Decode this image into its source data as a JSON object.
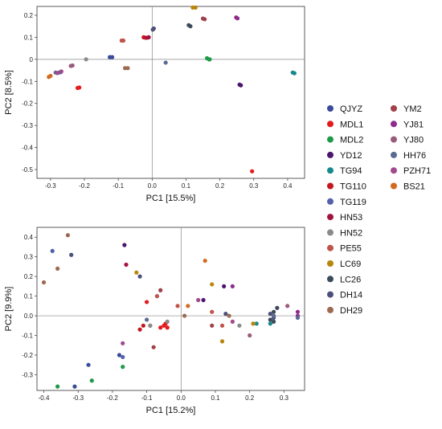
{
  "legend": {
    "groups": [
      {
        "name": "QJYZ",
        "color": "#3a4b9b"
      },
      {
        "name": "MDL1",
        "color": "#e41a1c"
      },
      {
        "name": "MDL2",
        "color": "#1f9a4a"
      },
      {
        "name": "YD12",
        "color": "#4a1670"
      },
      {
        "name": "TG94",
        "color": "#168a8a"
      },
      {
        "name": "TG110",
        "color": "#c4161c"
      },
      {
        "name": "TG119",
        "color": "#5460a8"
      },
      {
        "name": "HN53",
        "color": "#a3123e"
      },
      {
        "name": "HN52",
        "color": "#8a8a8a"
      },
      {
        "name": "PE55",
        "color": "#c0534a"
      },
      {
        "name": "LC69",
        "color": "#b8860b"
      },
      {
        "name": "LC26",
        "color": "#3b4b5b"
      },
      {
        "name": "DH14",
        "color": "#4b4f7a"
      },
      {
        "name": "DH29",
        "color": "#9c6a52"
      },
      {
        "name": "YM2",
        "color": "#a0404a"
      },
      {
        "name": "YJ81",
        "color": "#8e2c8e"
      },
      {
        "name": "YJ80",
        "color": "#9a5a7a"
      },
      {
        "name": "HH76",
        "color": "#5a6a90"
      },
      {
        "name": "PZH71",
        "color": "#a04a8c"
      },
      {
        "name": "BS21",
        "color": "#d2691e"
      }
    ]
  },
  "chart_data": [
    {
      "type": "scatter",
      "xlabel": "PC1 [15.5%]",
      "ylabel": "PC2 [8.5%]",
      "xlim": [
        -0.34,
        0.45
      ],
      "ylim": [
        -0.54,
        0.24
      ],
      "xticks": [
        -0.3,
        -0.2,
        -0.1,
        0.0,
        0.1,
        0.2,
        0.3,
        0.4
      ],
      "xtick_labels": [
        "-0.3",
        "-0.2",
        "-0.1",
        "0.0",
        "0.1",
        "0.2",
        "0.3",
        "0.4"
      ],
      "yticks": [
        0.2,
        0.1,
        0.0,
        -0.1,
        -0.2,
        -0.3,
        -0.4,
        -0.5
      ],
      "ytick_labels": [
        "0.2",
        "0.1",
        "0",
        "-0.1",
        "-0.2",
        "-0.3",
        "-0.4",
        "-0.5"
      ],
      "zero_lines": true,
      "grid": false,
      "series": [
        {
          "group": "QJYZ",
          "points": [
            [
              -0.125,
              0.01
            ],
            [
              -0.118,
              0.01
            ]
          ]
        },
        {
          "group": "MDL1",
          "points": [
            [
              -0.22,
              -0.13
            ],
            [
              -0.215,
              -0.128
            ],
            [
              0.295,
              -0.508
            ]
          ]
        },
        {
          "group": "MDL2",
          "points": [
            [
              0.162,
              0.005
            ],
            [
              0.168,
              0.0
            ],
            [
              0.17,
              0.0
            ]
          ]
        },
        {
          "group": "YD12",
          "points": [
            [
              0.258,
              -0.115
            ],
            [
              0.262,
              -0.118
            ]
          ]
        },
        {
          "group": "TG94",
          "points": [
            [
              0.415,
              -0.06
            ],
            [
              0.42,
              -0.063
            ]
          ]
        },
        {
          "group": "TG110",
          "points": [
            [
              -0.025,
              0.1
            ],
            [
              -0.02,
              0.098
            ]
          ]
        },
        {
          "group": "TG119",
          "points": [
            [
              -0.275,
              -0.06
            ],
            [
              -0.27,
              -0.058
            ]
          ]
        },
        {
          "group": "HN53",
          "points": [
            [
              -0.015,
              0.098
            ],
            [
              -0.01,
              0.1
            ]
          ]
        },
        {
          "group": "HN52",
          "points": [
            [
              -0.195,
              0.0
            ]
          ]
        },
        {
          "group": "PE55",
          "points": [
            [
              -0.09,
              0.085
            ],
            [
              -0.085,
              0.085
            ]
          ]
        },
        {
          "group": "LC69",
          "points": [
            [
              0.12,
              0.235
            ],
            [
              0.128,
              0.235
            ]
          ]
        },
        {
          "group": "LC26",
          "points": [
            [
              0.108,
              0.155
            ],
            [
              0.113,
              0.15
            ]
          ]
        },
        {
          "group": "DH14",
          "points": [
            [
              0.002,
              0.135
            ],
            [
              0.005,
              0.14
            ]
          ]
        },
        {
          "group": "DH29",
          "points": [
            [
              -0.08,
              -0.04
            ],
            [
              -0.072,
              -0.04
            ]
          ]
        },
        {
          "group": "YM2",
          "points": [
            [
              0.15,
              0.185
            ],
            [
              0.155,
              0.182
            ]
          ]
        },
        {
          "group": "YJ81",
          "points": [
            [
              0.248,
              0.19
            ],
            [
              0.252,
              0.186
            ]
          ]
        },
        {
          "group": "YJ80",
          "points": [
            [
              -0.24,
              -0.03
            ],
            [
              -0.235,
              -0.028
            ]
          ]
        },
        {
          "group": "HH76",
          "points": [
            [
              -0.285,
              -0.06
            ],
            [
              0.04,
              -0.015
            ]
          ]
        },
        {
          "group": "PZH71",
          "points": [
            [
              -0.28,
              -0.062
            ],
            [
              -0.268,
              -0.055
            ]
          ]
        },
        {
          "group": "BS21",
          "points": [
            [
              -0.305,
              -0.08
            ],
            [
              -0.3,
              -0.075
            ]
          ]
        }
      ]
    },
    {
      "type": "scatter",
      "xlabel": "PC1 [15.2%]",
      "ylabel": "PC2 [9.9%]",
      "xlim": [
        -0.42,
        0.36
      ],
      "ylim": [
        -0.38,
        0.45
      ],
      "xticks": [
        -0.4,
        -0.3,
        -0.2,
        -0.1,
        0.0,
        0.1,
        0.2,
        0.3
      ],
      "xtick_labels": [
        "-0.4",
        "-0.3",
        "-0.2",
        "-0.1",
        "0.0",
        "0.1",
        "0.2",
        "0.3"
      ],
      "yticks": [
        0.4,
        0.3,
        0.2,
        0.1,
        0.0,
        -0.1,
        -0.2,
        -0.3
      ],
      "ytick_labels": [
        "0.4",
        "0.3",
        "0.2",
        "0.1",
        "0.0",
        "-0.1",
        "-0.2",
        "-0.3"
      ],
      "zero_lines": true,
      "grid": false,
      "series": [
        {
          "group": "QJYZ",
          "points": [
            [
              -0.27,
              -0.25
            ],
            [
              -0.18,
              -0.2
            ],
            [
              -0.31,
              -0.36
            ]
          ]
        },
        {
          "group": "MDL1",
          "points": [
            [
              -0.1,
              0.07
            ],
            [
              -0.09,
              -0.05
            ],
            [
              -0.06,
              -0.06
            ],
            [
              -0.05,
              -0.05
            ],
            [
              -0.04,
              -0.06
            ],
            [
              -0.045,
              -0.04
            ]
          ]
        },
        {
          "group": "MDL2",
          "points": [
            [
              -0.36,
              -0.36
            ],
            [
              -0.26,
              -0.33
            ],
            [
              -0.17,
              -0.26
            ]
          ]
        },
        {
          "group": "YD12",
          "points": [
            [
              -0.165,
              0.36
            ],
            [
              0.065,
              0.08
            ],
            [
              0.125,
              0.15
            ]
          ]
        },
        {
          "group": "TG94",
          "points": [
            [
              0.22,
              -0.04
            ],
            [
              0.26,
              -0.04
            ]
          ]
        },
        {
          "group": "TG110",
          "points": [
            [
              -0.12,
              -0.07
            ],
            [
              -0.11,
              -0.05
            ]
          ]
        },
        {
          "group": "TG119",
          "points": [
            [
              -0.375,
              0.33
            ],
            [
              -0.17,
              -0.21
            ]
          ]
        },
        {
          "group": "HN53",
          "points": [
            [
              -0.16,
              0.26
            ]
          ]
        },
        {
          "group": "HN52",
          "points": [
            [
              -0.09,
              -0.05
            ],
            [
              -0.04,
              -0.03
            ],
            [
              0.17,
              -0.05
            ]
          ]
        },
        {
          "group": "PE55",
          "points": [
            [
              -0.07,
              0.1
            ],
            [
              -0.01,
              0.05
            ],
            [
              0.09,
              0.02
            ],
            [
              0.12,
              -0.05
            ]
          ]
        },
        {
          "group": "LC69",
          "points": [
            [
              -0.13,
              0.22
            ],
            [
              0.09,
              0.16
            ],
            [
              0.12,
              -0.13
            ],
            [
              0.21,
              -0.04
            ]
          ]
        },
        {
          "group": "LC26",
          "points": [
            [
              0.26,
              -0.02
            ],
            [
              0.27,
              -0.03
            ],
            [
              0.27,
              0.02
            ],
            [
              0.28,
              0.04
            ]
          ]
        },
        {
          "group": "DH14",
          "points": [
            [
              -0.32,
              0.31
            ],
            [
              -0.12,
              0.2
            ],
            [
              0.13,
              0.01
            ],
            [
              0.26,
              0.01
            ],
            [
              0.27,
              -0.01
            ]
          ]
        },
        {
          "group": "DH29",
          "points": [
            [
              -0.4,
              0.17
            ],
            [
              -0.36,
              0.24
            ],
            [
              -0.33,
              0.41
            ],
            [
              0.01,
              0.0
            ],
            [
              0.14,
              0.0
            ]
          ]
        },
        {
          "group": "YM2",
          "points": [
            [
              -0.08,
              -0.16
            ],
            [
              -0.06,
              0.13
            ],
            [
              0.09,
              -0.05
            ]
          ]
        },
        {
          "group": "YJ81",
          "points": [
            [
              0.15,
              0.15
            ],
            [
              0.34,
              0.02
            ],
            [
              0.34,
              0.0
            ]
          ]
        },
        {
          "group": "YJ80",
          "points": [
            [
              0.31,
              0.05
            ],
            [
              0.2,
              -0.1
            ]
          ]
        },
        {
          "group": "HH76",
          "points": [
            [
              -0.1,
              -0.02
            ],
            [
              0.27,
              0.0
            ],
            [
              0.34,
              -0.01
            ]
          ]
        },
        {
          "group": "PZH71",
          "points": [
            [
              -0.17,
              -0.14
            ],
            [
              0.05,
              0.08
            ],
            [
              0.15,
              -0.03
            ]
          ]
        },
        {
          "group": "BS21",
          "points": [
            [
              0.07,
              0.28
            ],
            [
              0.02,
              0.05
            ]
          ]
        }
      ]
    }
  ]
}
